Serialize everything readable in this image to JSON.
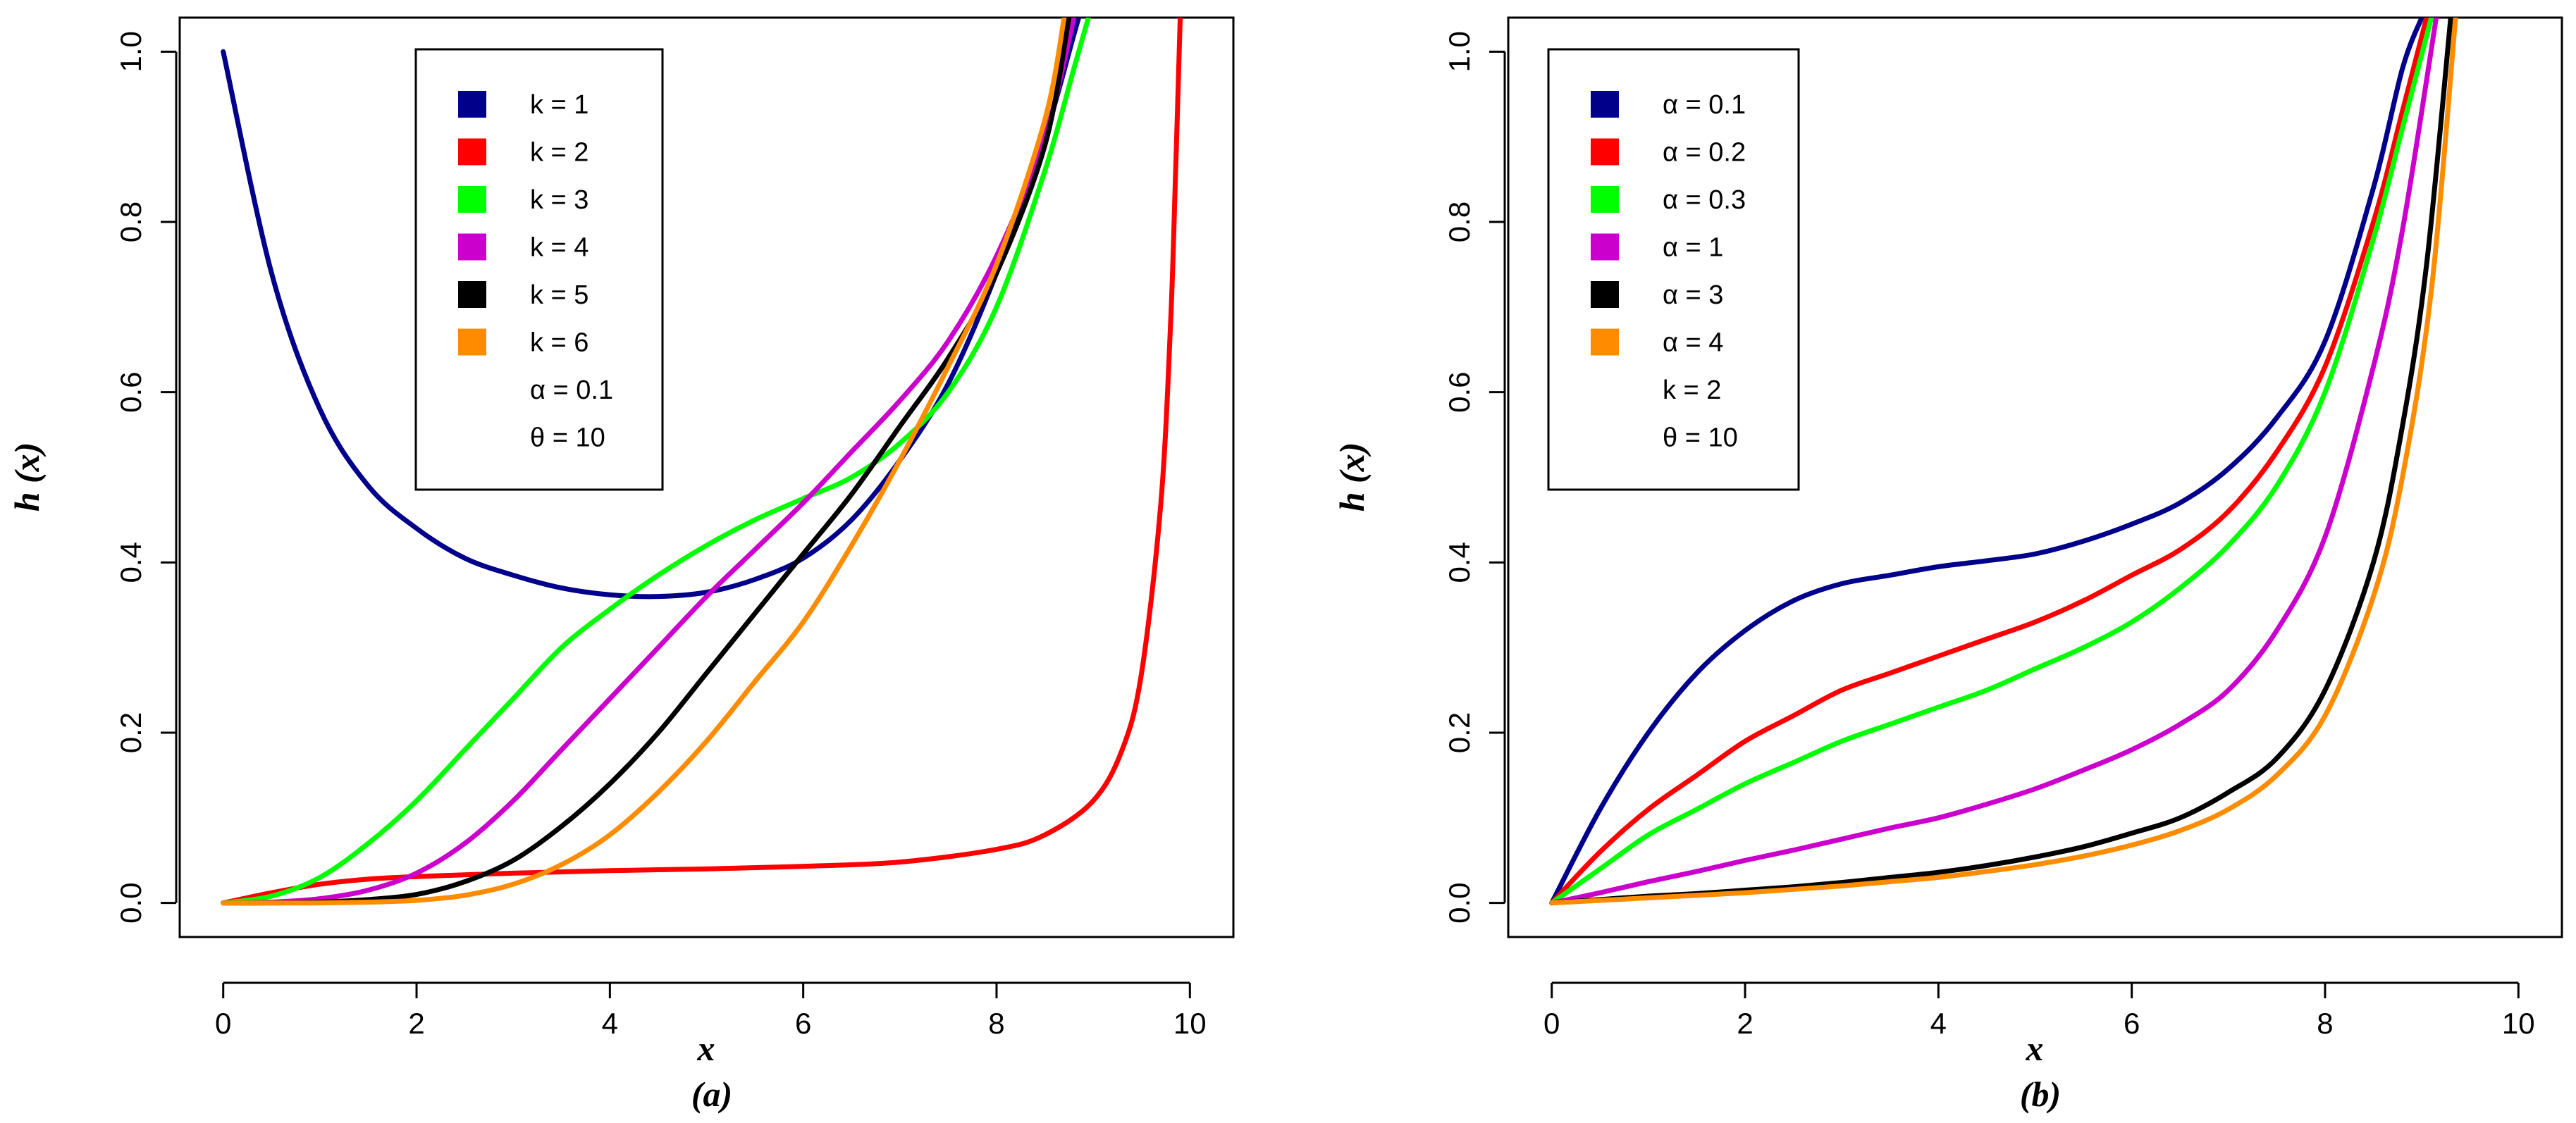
{
  "chart_data": [
    {
      "type": "line",
      "panel_label": "(a)",
      "xlabel": "x",
      "ylabel": "h (x)",
      "xlim": [
        -0.45,
        10.45
      ],
      "ylim": [
        -0.04,
        1.04
      ],
      "xticks": [
        "0",
        "2",
        "4",
        "6",
        "8",
        "10"
      ],
      "yticks": [
        "0.0",
        "0.2",
        "0.4",
        "0.6",
        "0.8",
        "1.0"
      ],
      "legend": {
        "position": "top-center",
        "entries": [
          "k = 1",
          "k = 2",
          "k = 3",
          "k = 4",
          "k = 5",
          "k = 6"
        ],
        "extra": [
          "α = 0.1",
          "θ = 10"
        ]
      },
      "series": [
        {
          "name": "k = 1",
          "color": "#00008B",
          "x": [
            0,
            0.5,
            1,
            1.5,
            2,
            2.5,
            3,
            3.5,
            4,
            4.5,
            5,
            5.5,
            6,
            6.5,
            7,
            7.5,
            8,
            8.5,
            8.8,
            9.0
          ],
          "y": [
            1.0,
            0.74,
            0.58,
            0.49,
            0.44,
            0.405,
            0.385,
            0.37,
            0.362,
            0.36,
            0.365,
            0.38,
            0.405,
            0.45,
            0.52,
            0.61,
            0.74,
            0.9,
            1.02,
            1.1
          ]
        },
        {
          "name": "k = 2",
          "color": "#FF0000",
          "x": [
            0,
            0.5,
            1,
            1.5,
            2,
            3,
            4,
            5,
            6,
            7,
            8,
            8.5,
            9.0,
            9.3,
            9.5,
            9.7,
            9.8,
            9.85,
            9.9
          ],
          "y": [
            0,
            0.012,
            0.022,
            0.028,
            0.031,
            0.035,
            0.038,
            0.04,
            0.043,
            0.048,
            0.063,
            0.08,
            0.12,
            0.18,
            0.27,
            0.47,
            0.68,
            0.85,
            1.04
          ]
        },
        {
          "name": "k = 3",
          "color": "#00FF00",
          "x": [
            0,
            0.5,
            1,
            1.5,
            2,
            2.5,
            3,
            3.5,
            4,
            4.5,
            5,
            5.5,
            6,
            6.5,
            7,
            7.5,
            8,
            8.5,
            8.8,
            9.0
          ],
          "y": [
            0,
            0.008,
            0.03,
            0.07,
            0.12,
            0.18,
            0.24,
            0.3,
            0.345,
            0.385,
            0.42,
            0.45,
            0.475,
            0.5,
            0.54,
            0.6,
            0.7,
            0.86,
            0.98,
            1.06
          ]
        },
        {
          "name": "k = 4",
          "color": "#CC00CC",
          "x": [
            0,
            0.5,
            1,
            1.5,
            2,
            2.5,
            3,
            3.5,
            4,
            4.5,
            5,
            5.5,
            6,
            6.5,
            7,
            7.5,
            8,
            8.5,
            8.8
          ],
          "y": [
            0,
            0.001,
            0.005,
            0.015,
            0.035,
            0.07,
            0.12,
            0.18,
            0.24,
            0.3,
            0.36,
            0.415,
            0.47,
            0.53,
            0.59,
            0.66,
            0.76,
            0.9,
            1.04
          ]
        },
        {
          "name": "k = 5",
          "color": "#000000",
          "x": [
            0,
            0.5,
            1,
            1.5,
            2,
            2.5,
            3,
            3.5,
            4,
            4.5,
            5,
            5.5,
            6,
            6.5,
            7,
            7.5,
            8,
            8.5,
            8.75
          ],
          "y": [
            0,
            0,
            0.001,
            0.004,
            0.01,
            0.025,
            0.05,
            0.09,
            0.14,
            0.2,
            0.27,
            0.34,
            0.41,
            0.48,
            0.56,
            0.64,
            0.74,
            0.89,
            1.04
          ]
        },
        {
          "name": "k = 6",
          "color": "#FF8C00",
          "x": [
            0,
            0.5,
            1,
            1.5,
            2,
            2.5,
            3,
            3.5,
            4,
            4.5,
            5,
            5.5,
            6,
            6.5,
            7,
            7.5,
            8,
            8.5,
            8.7
          ],
          "y": [
            0,
            0,
            0,
            0.001,
            0.003,
            0.009,
            0.022,
            0.045,
            0.08,
            0.13,
            0.19,
            0.26,
            0.33,
            0.42,
            0.52,
            0.63,
            0.75,
            0.92,
            1.04
          ]
        }
      ]
    },
    {
      "type": "line",
      "panel_label": "(b)",
      "xlabel": "x",
      "ylabel": "h (x)",
      "xlim": [
        -0.45,
        10.45
      ],
      "ylim": [
        -0.04,
        1.04
      ],
      "xticks": [
        "0",
        "2",
        "4",
        "6",
        "8",
        "10"
      ],
      "yticks": [
        "0.0",
        "0.2",
        "0.4",
        "0.6",
        "0.8",
        "1.0"
      ],
      "legend": {
        "position": "top-left",
        "entries": [
          "α = 0.1",
          "α = 0.2",
          "α = 0.3",
          "α = 1",
          "α = 3",
          "α = 4"
        ],
        "extra": [
          "k = 2",
          "θ = 10"
        ]
      },
      "series": [
        {
          "name": "α = 0.1",
          "color": "#00008B",
          "x": [
            0,
            0.5,
            1,
            1.5,
            2,
            2.5,
            3,
            3.5,
            4,
            4.5,
            5,
            5.5,
            6,
            6.5,
            7,
            7.5,
            8,
            8.5,
            8.8,
            9.0
          ],
          "y": [
            0,
            0.11,
            0.2,
            0.27,
            0.32,
            0.355,
            0.375,
            0.385,
            0.395,
            0.402,
            0.41,
            0.425,
            0.445,
            0.47,
            0.51,
            0.57,
            0.66,
            0.84,
            0.98,
            1.04
          ]
        },
        {
          "name": "α = 0.2",
          "color": "#FF0000",
          "x": [
            0,
            0.5,
            1,
            1.5,
            2,
            2.5,
            3,
            3.5,
            4,
            4.5,
            5,
            5.5,
            6,
            6.5,
            7,
            7.5,
            8,
            8.5,
            8.8,
            9.05
          ],
          "y": [
            0,
            0.06,
            0.11,
            0.15,
            0.19,
            0.22,
            0.25,
            0.27,
            0.29,
            0.31,
            0.33,
            0.355,
            0.385,
            0.415,
            0.46,
            0.53,
            0.63,
            0.8,
            0.93,
            1.04
          ]
        },
        {
          "name": "α = 0.3",
          "color": "#00FF00",
          "x": [
            0,
            0.5,
            1,
            1.5,
            2,
            2.5,
            3,
            3.5,
            4,
            4.5,
            5,
            5.5,
            6,
            6.5,
            7,
            7.5,
            8,
            8.5,
            8.8,
            9.1
          ],
          "y": [
            0,
            0.04,
            0.08,
            0.11,
            0.14,
            0.165,
            0.19,
            0.21,
            0.23,
            0.25,
            0.275,
            0.3,
            0.33,
            0.37,
            0.42,
            0.49,
            0.6,
            0.78,
            0.91,
            1.04
          ]
        },
        {
          "name": "α = 1",
          "color": "#CC00CC",
          "x": [
            0,
            0.5,
            1,
            1.5,
            2,
            2.5,
            3,
            3.5,
            4,
            4.5,
            5,
            5.5,
            6,
            6.5,
            7,
            7.5,
            8,
            8.5,
            8.8,
            9.15
          ],
          "y": [
            0,
            0.012,
            0.025,
            0.037,
            0.05,
            0.062,
            0.075,
            0.088,
            0.1,
            0.116,
            0.134,
            0.156,
            0.18,
            0.21,
            0.25,
            0.32,
            0.43,
            0.63,
            0.79,
            1.04
          ]
        },
        {
          "name": "α = 3",
          "color": "#000000",
          "x": [
            0,
            0.5,
            1,
            1.5,
            2,
            2.5,
            3,
            3.5,
            4,
            4.5,
            5,
            5.5,
            6,
            6.5,
            7,
            7.5,
            8,
            8.5,
            8.8,
            9.05,
            9.3
          ],
          "y": [
            0,
            0.004,
            0.008,
            0.011,
            0.015,
            0.019,
            0.024,
            0.03,
            0.036,
            0.044,
            0.054,
            0.066,
            0.082,
            0.1,
            0.13,
            0.17,
            0.25,
            0.4,
            0.56,
            0.75,
            1.04
          ]
        },
        {
          "name": "α = 4",
          "color": "#FF8C00",
          "x": [
            0,
            0.5,
            1,
            1.5,
            2,
            2.5,
            3,
            3.5,
            4,
            4.5,
            5,
            5.5,
            6,
            6.5,
            7,
            7.5,
            8,
            8.5,
            8.8,
            9.1,
            9.35
          ],
          "y": [
            0,
            0.003,
            0.006,
            0.009,
            0.012,
            0.016,
            0.02,
            0.025,
            0.03,
            0.037,
            0.045,
            0.055,
            0.068,
            0.085,
            0.11,
            0.15,
            0.22,
            0.36,
            0.5,
            0.72,
            1.04
          ]
        }
      ]
    }
  ]
}
